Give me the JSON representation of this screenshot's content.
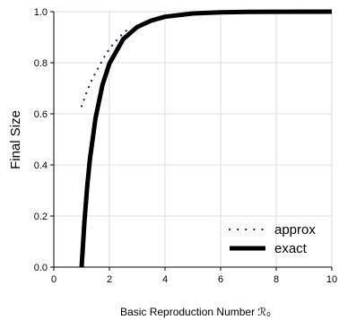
{
  "chart_data": {
    "type": "line",
    "xlabel": "Basic Reproduction Number ℛ₀",
    "ylabel": "Final Size",
    "xlim": [
      0,
      10
    ],
    "ylim": [
      0,
      1.0
    ],
    "xticks": [
      0,
      2,
      4,
      6,
      8,
      10
    ],
    "xtick_labels": [
      "0",
      "2",
      "4",
      "6",
      "8",
      "10"
    ],
    "yticks": [
      0.0,
      0.2,
      0.4,
      0.6,
      0.8,
      1.0
    ],
    "ytick_labels": [
      "0.0",
      "0.2",
      "0.4",
      "0.6",
      "0.8",
      "1.0"
    ],
    "grid": true,
    "legend_position": "bottom-right",
    "series": [
      {
        "name": "approx",
        "style": "dotted",
        "color": "#1a1a8c",
        "x": [
          1.0,
          1.2,
          1.4,
          1.6,
          1.8,
          2.0,
          2.2,
          2.4,
          2.6,
          2.8
        ],
        "y": [
          0.63,
          0.69,
          0.74,
          0.78,
          0.82,
          0.855,
          0.88,
          0.905,
          0.925,
          0.94
        ]
      },
      {
        "name": "exact",
        "style": "solid",
        "color": "#000000",
        "x": [
          1.0,
          1.1,
          1.2,
          1.3,
          1.5,
          1.75,
          2.0,
          2.5,
          3.0,
          3.5,
          4.0,
          5.0,
          6.0,
          7.0,
          8.0,
          10.0
        ],
        "y": [
          0.0,
          0.176,
          0.314,
          0.424,
          0.583,
          0.713,
          0.797,
          0.893,
          0.94,
          0.965,
          0.98,
          0.993,
          0.9975,
          0.9991,
          0.9997,
          1.0
        ]
      }
    ]
  }
}
